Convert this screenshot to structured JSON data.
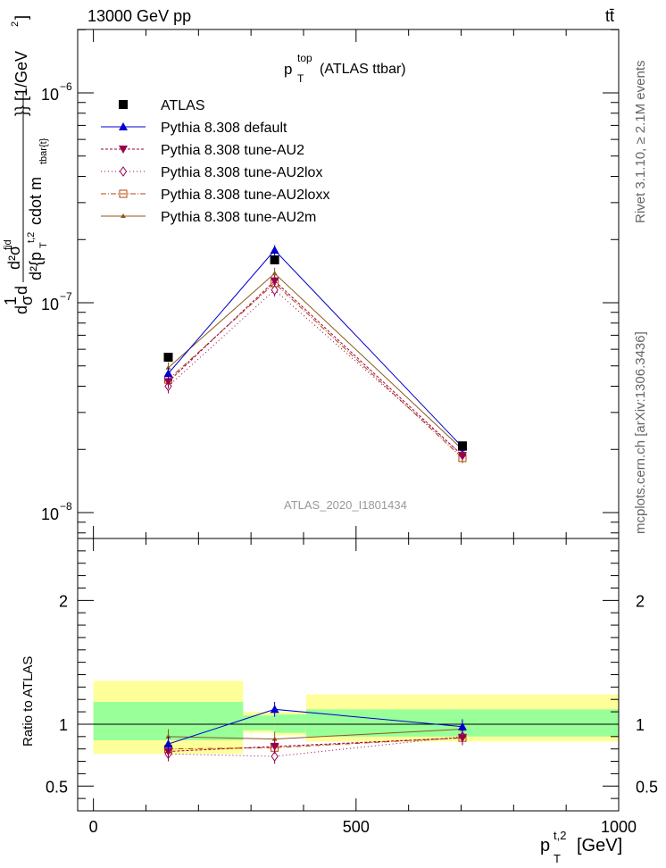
{
  "header": {
    "energy_label": "13000 GeV pp",
    "process_label": "tt̄"
  },
  "plot_title": {
    "main": "p",
    "sup": "top",
    "sub": "T",
    "suffix": "(ATLAS ttbar)"
  },
  "watermark": "ATLAS_2020_I1801434",
  "side_labels": {
    "rivet": "Rivet 3.1.10, ≥ 2.1M events",
    "mcplots": "mcplots.cern.ch [arXiv:1306.3436]"
  },
  "upper_axis": {
    "ylabel": "d²σ/d pT(t,2)... [1/GeV²]",
    "ylabel_parts": [
      "d",
      "1",
      "σ",
      "d",
      "d²σ",
      "fid",
      "d²{p",
      "T",
      "t,2",
      "cdot m",
      "tbar{t}",
      "}} [1/GeV",
      "2",
      "]"
    ],
    "scale": "log",
    "ylim": [
      8e-09,
      2e-06
    ],
    "ticks": [
      {
        "value": 1e-06,
        "base": "10",
        "exp": "−6"
      },
      {
        "value": 1e-07,
        "base": "10",
        "exp": "−7"
      },
      {
        "value": 1e-08,
        "base": "10",
        "exp": "−8"
      }
    ]
  },
  "lower_axis": {
    "ylabel": "Ratio to ATLAS",
    "ylim": [
      0.3,
      2.5
    ],
    "ticks": [
      {
        "value": 0.5,
        "label": "0.5"
      },
      {
        "value": 1,
        "label": "1"
      },
      {
        "value": 2,
        "label": "2"
      }
    ]
  },
  "x_axis": {
    "label_main": "p",
    "label_sup": "t,2",
    "label_sub": "T",
    "label_unit": "[GeV]",
    "xlim": [
      -30,
      1000
    ],
    "ticks": [
      {
        "value": 0,
        "label": "0"
      },
      {
        "value": 500,
        "label": "500"
      },
      {
        "value": 1000,
        "label": "1000"
      }
    ]
  },
  "colors": {
    "data": "#000000",
    "default": "#0000cc",
    "au2": "#99004d",
    "au2lox": "#99004d",
    "au2loxx": "#b34700",
    "au2m": "#8c5a1a",
    "band_inner": "#99ff99",
    "band_outer": "#ffff99"
  },
  "chart_data": {
    "type": "scatter",
    "bins": [
      [
        0,
        285
      ],
      [
        285,
        405
      ],
      [
        405,
        1000
      ]
    ],
    "x": [
      142.5,
      345,
      702.5
    ],
    "legend": {
      "position": "top-left",
      "entries": [
        {
          "key": "data",
          "label": "ATLAS",
          "marker": "square"
        },
        {
          "key": "default",
          "label": "Pythia 8.308 default",
          "marker": "triangle-up"
        },
        {
          "key": "au2",
          "label": "Pythia 8.308 tune-AU2",
          "marker": "triangle-down"
        },
        {
          "key": "au2lox",
          "label": "Pythia 8.308 tune-AU2lox",
          "marker": "diamond-open"
        },
        {
          "key": "au2loxx",
          "label": "Pythia 8.308 tune-AU2loxx",
          "marker": "square-open"
        },
        {
          "key": "au2m",
          "label": "Pythia 8.308 tune-AU2m",
          "marker": "star"
        }
      ]
    },
    "data": {
      "name": "ATLAS",
      "values": [
        5.5e-08,
        1.6e-07,
        2.08e-08
      ]
    },
    "series": [
      {
        "key": "default",
        "name": "Pythia 8.308 default",
        "values": [
          4.6e-08,
          1.78e-07,
          2.05e-08
        ],
        "err": [
          3e-09,
          1e-08,
          1e-09
        ],
        "dash": "",
        "ratio": [
          0.84,
          1.12,
          0.98
        ]
      },
      {
        "key": "au2",
        "name": "Pythia 8.308 tune-AU2",
        "values": [
          4.2e-08,
          1.27e-07,
          1.87e-08
        ],
        "err": [
          3e-09,
          8e-09,
          1e-09
        ],
        "dash": "3,2",
        "ratio": [
          0.78,
          0.82,
          0.89
        ]
      },
      {
        "key": "au2lox",
        "name": "Pythia 8.308 tune-AU2lox",
        "values": [
          4e-08,
          1.15e-07,
          1.88e-08
        ],
        "err": [
          3e-09,
          8e-09,
          1e-09
        ],
        "dash": "1,3",
        "ratio": [
          0.76,
          0.74,
          0.9
        ]
      },
      {
        "key": "au2loxx",
        "name": "Pythia 8.308 tune-AU2loxx",
        "values": [
          4.3e-08,
          1.24e-07,
          1.82e-08
        ],
        "err": [
          3e-09,
          8e-09,
          1e-09
        ],
        "dash": "6,2,1,2",
        "ratio": [
          0.8,
          0.81,
          0.89
        ]
      },
      {
        "key": "au2m",
        "name": "Pythia 8.308 tune-AU2m",
        "values": [
          4.9e-08,
          1.38e-07,
          2e-08
        ],
        "err": [
          3e-09,
          9e-09,
          1e-09
        ],
        "dash": "",
        "ratio": [
          0.9,
          0.88,
          0.96
        ]
      }
    ],
    "bands": [
      {
        "bin": [
          0,
          285
        ],
        "inner": [
          0.87,
          1.18
        ],
        "outer": [
          0.76,
          1.35
        ]
      },
      {
        "bin": [
          285,
          345
        ],
        "inner": [
          0.95,
          1.07
        ],
        "outer": [
          0.93,
          1.1
        ]
      },
      {
        "bin": [
          345,
          405
        ],
        "inner": [
          0.93,
          1.08
        ],
        "outer": [
          0.91,
          1.1
        ]
      },
      {
        "bin": [
          405,
          1000
        ],
        "inner": [
          0.9,
          1.12
        ],
        "outer": [
          0.86,
          1.24
        ]
      }
    ]
  }
}
